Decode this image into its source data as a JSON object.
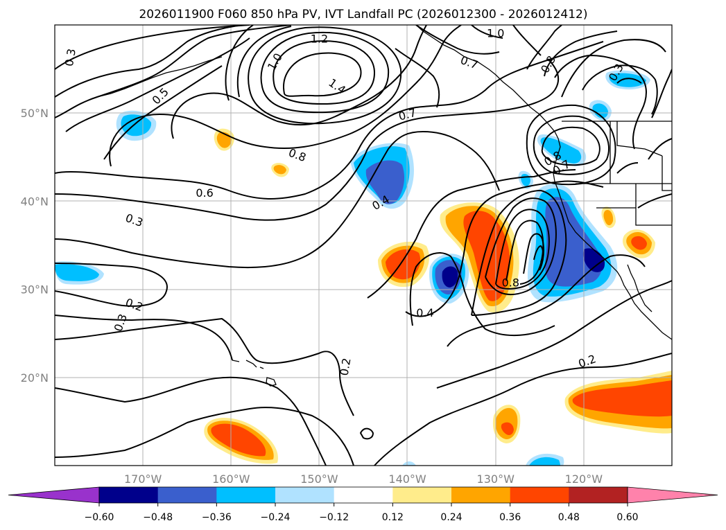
{
  "title": "2026011900 F060 850 hPa PV, IVT Landfall PC (2026012300 - 2026012412)",
  "map": {
    "lon_range": [
      -180,
      -110
    ],
    "lat_range": [
      10,
      60
    ],
    "lon_ticks": [
      {
        "lon": -170,
        "label": "170°W"
      },
      {
        "lon": -160,
        "label": "160°W"
      },
      {
        "lon": -150,
        "label": "150°W"
      },
      {
        "lon": -140,
        "label": "140°W"
      },
      {
        "lon": -130,
        "label": "130°W"
      },
      {
        "lon": -120,
        "label": "120°W"
      }
    ],
    "lat_ticks": [
      {
        "lat": 20,
        "label": "20°N"
      },
      {
        "lat": 30,
        "label": "30°N"
      },
      {
        "lat": 40,
        "label": "40°N"
      },
      {
        "lat": 50,
        "label": "50°N"
      }
    ],
    "grid": true
  },
  "colorbar": {
    "colors": [
      "#9932cc",
      "#00008b",
      "#3a5fcd",
      "#00bfff",
      "#b0e2ff",
      "#ffffff",
      "#ffec8b",
      "#ffa500",
      "#ff4500",
      "#b22222",
      "#ff82ab"
    ],
    "levels": [
      "−0.60",
      "−0.48",
      "−0.36",
      "−0.24",
      "−0.12",
      "0.12",
      "0.24",
      "0.36",
      "0.48",
      "0.60"
    ],
    "extend": "both"
  },
  "contour_labels": [
    {
      "text": "0.3",
      "lon": -178.2,
      "lat": 56.3,
      "rot": -80
    },
    {
      "text": "0.5",
      "lon": -168.0,
      "lat": 51.9,
      "rot": -45
    },
    {
      "text": "1.0",
      "lon": -155.0,
      "lat": 55.8,
      "rot": -60
    },
    {
      "text": "1.2",
      "lon": -150.0,
      "lat": 58.4,
      "rot": 0
    },
    {
      "text": "1.4",
      "lon": -148.0,
      "lat": 53.0,
      "rot": 35
    },
    {
      "text": "1.0",
      "lon": -130.0,
      "lat": 59.0,
      "rot": 0
    },
    {
      "text": "0.7",
      "lon": -133.0,
      "lat": 55.7,
      "rot": 20
    },
    {
      "text": "0.8",
      "lon": -124.0,
      "lat": 55.5,
      "rot": -60
    },
    {
      "text": "0.3",
      "lon": -116.3,
      "lat": 54.6,
      "rot": -60
    },
    {
      "text": "0.7",
      "lon": -140.0,
      "lat": 49.8,
      "rot": -15
    },
    {
      "text": "0.8",
      "lon": -152.5,
      "lat": 45.2,
      "rot": 20
    },
    {
      "text": "0.6",
      "lon": -163.0,
      "lat": 40.9,
      "rot": 0
    },
    {
      "text": "0.3",
      "lon": -171.0,
      "lat": 37.8,
      "rot": 20
    },
    {
      "text": "0.4",
      "lon": -143.0,
      "lat": 39.8,
      "rot": -30
    },
    {
      "text": "0.8",
      "lon": -123.5,
      "lat": 44.8,
      "rot": -30
    },
    {
      "text": "0.7",
      "lon": -122.5,
      "lat": 43.8,
      "rot": -30
    },
    {
      "text": "0.8",
      "lon": -128.3,
      "lat": 30.7,
      "rot": 0
    },
    {
      "text": "0.4",
      "lon": -138.0,
      "lat": 27.3,
      "rot": 0
    },
    {
      "text": "0.2",
      "lon": -171.0,
      "lat": 28.2,
      "rot": 20
    },
    {
      "text": "0.3",
      "lon": -172.5,
      "lat": 26.2,
      "rot": -70
    },
    {
      "text": "0.2",
      "lon": -147.0,
      "lat": 21.2,
      "rot": -80
    },
    {
      "text": "0.2",
      "lon": -119.6,
      "lat": 21.8,
      "rot": -20
    }
  ]
}
